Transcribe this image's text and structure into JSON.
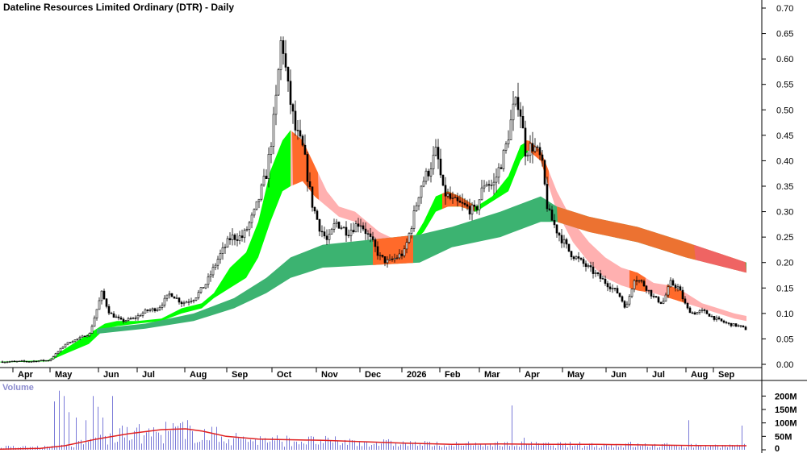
{
  "chart_data": [
    {
      "type": "candlestick",
      "title": "Dateline Resources Limited Ordinary (DTR) - Daily",
      "ylim": [
        0,
        0.7
      ],
      "y_ticks": [
        "0.70",
        "0.65",
        "0.60",
        "0.55",
        "0.50",
        "0.45",
        "0.40",
        "0.35",
        "0.30",
        "0.25",
        "0.20",
        "0.15",
        "0.10",
        "0.05",
        "0.00"
      ],
      "x_labels": [
        "Apr",
        "May",
        "Jun",
        "Jul",
        "Aug",
        "Sep",
        "Oct",
        "Nov",
        "Dec",
        "2026",
        "Feb",
        "Mar",
        "Apr",
        "May",
        "Jun",
        "Jul",
        "Aug",
        "Sep"
      ],
      "price_path": [
        [
          0,
          0.005
        ],
        [
          40,
          0.006
        ],
        [
          60,
          0.008
        ],
        [
          68,
          0.02
        ],
        [
          80,
          0.04
        ],
        [
          95,
          0.05
        ],
        [
          110,
          0.06
        ],
        [
          125,
          0.14
        ],
        [
          135,
          0.1
        ],
        [
          150,
          0.085
        ],
        [
          165,
          0.09
        ],
        [
          180,
          0.105
        ],
        [
          195,
          0.11
        ],
        [
          210,
          0.14
        ],
        [
          225,
          0.12
        ],
        [
          240,
          0.13
        ],
        [
          255,
          0.16
        ],
        [
          270,
          0.21
        ],
        [
          285,
          0.25
        ],
        [
          300,
          0.25
        ],
        [
          315,
          0.3
        ],
        [
          330,
          0.38
        ],
        [
          340,
          0.5
        ],
        [
          348,
          0.65
        ],
        [
          355,
          0.55
        ],
        [
          365,
          0.46
        ],
        [
          375,
          0.42
        ],
        [
          385,
          0.32
        ],
        [
          395,
          0.27
        ],
        [
          405,
          0.24
        ],
        [
          415,
          0.28
        ],
        [
          430,
          0.26
        ],
        [
          445,
          0.28
        ],
        [
          460,
          0.24
        ],
        [
          470,
          0.21
        ],
        [
          480,
          0.2
        ],
        [
          490,
          0.21
        ],
        [
          500,
          0.22
        ],
        [
          510,
          0.28
        ],
        [
          520,
          0.35
        ],
        [
          530,
          0.38
        ],
        [
          540,
          0.42
        ],
        [
          548,
          0.34
        ],
        [
          560,
          0.32
        ],
        [
          575,
          0.31
        ],
        [
          588,
          0.3
        ],
        [
          600,
          0.36
        ],
        [
          610,
          0.35
        ],
        [
          625,
          0.42
        ],
        [
          635,
          0.5
        ],
        [
          642,
          0.52
        ],
        [
          650,
          0.42
        ],
        [
          660,
          0.43
        ],
        [
          670,
          0.4
        ],
        [
          678,
          0.3
        ],
        [
          690,
          0.26
        ],
        [
          705,
          0.22
        ],
        [
          720,
          0.2
        ],
        [
          735,
          0.18
        ],
        [
          750,
          0.16
        ],
        [
          765,
          0.14
        ],
        [
          775,
          0.11
        ],
        [
          785,
          0.17
        ],
        [
          795,
          0.16
        ],
        [
          810,
          0.13
        ],
        [
          820,
          0.12
        ],
        [
          830,
          0.16
        ],
        [
          840,
          0.15
        ],
        [
          850,
          0.11
        ],
        [
          858,
          0.1
        ],
        [
          870,
          0.105
        ],
        [
          885,
          0.09
        ],
        [
          900,
          0.08
        ],
        [
          915,
          0.075
        ],
        [
          925,
          0.068
        ]
      ],
      "bands": [
        {
          "upper": [
            [
              0,
              0.005
            ],
            [
              60,
              0.008
            ],
            [
              80,
              0.03
            ],
            [
              110,
              0.06
            ],
            [
              130,
              0.08
            ],
            [
              145,
              0.085
            ],
            [
              170,
              0.085
            ],
            [
              200,
              0.09
            ],
            [
              225,
              0.11
            ],
            [
              250,
              0.12
            ],
            [
              265,
              0.14
            ],
            [
              285,
              0.19
            ],
            [
              305,
              0.22
            ],
            [
              320,
              0.28
            ],
            [
              335,
              0.38
            ],
            [
              350,
              0.44
            ],
            [
              360,
              0.46
            ]
          ],
          "lower": [
            [
              0,
              0.004
            ],
            [
              60,
              0.006
            ],
            [
              80,
              0.02
            ],
            [
              110,
              0.04
            ],
            [
              130,
              0.07
            ],
            [
              145,
              0.075
            ],
            [
              170,
              0.08
            ],
            [
              200,
              0.085
            ],
            [
              225,
              0.1
            ],
            [
              250,
              0.11
            ],
            [
              265,
              0.13
            ],
            [
              285,
              0.15
            ],
            [
              305,
              0.17
            ],
            [
              320,
              0.21
            ],
            [
              335,
              0.28
            ],
            [
              350,
              0.34
            ],
            [
              360,
              0.35
            ]
          ],
          "color": "#00ff00"
        },
        {
          "upper": [
            [
              360,
              0.46
            ],
            [
              375,
              0.44
            ],
            [
              390,
              0.39
            ],
            [
              405,
              0.34
            ],
            [
              420,
              0.31
            ],
            [
              440,
              0.3
            ],
            [
              455,
              0.28
            ],
            [
              470,
              0.26
            ],
            [
              490,
              0.245
            ],
            [
              505,
              0.24
            ],
            [
              510,
              0.24
            ]
          ],
          "lower": [
            [
              360,
              0.35
            ],
            [
              375,
              0.36
            ],
            [
              390,
              0.33
            ],
            [
              405,
              0.31
            ],
            [
              420,
              0.29
            ],
            [
              440,
              0.28
            ],
            [
              455,
              0.26
            ],
            [
              470,
              0.24
            ],
            [
              490,
              0.235
            ],
            [
              505,
              0.235
            ],
            [
              510,
              0.238
            ]
          ],
          "color": "#ffb0b0"
        },
        {
          "upper": [
            [
              510,
              0.24
            ],
            [
              525,
              0.28
            ],
            [
              540,
              0.33
            ],
            [
              555,
              0.34
            ],
            [
              570,
              0.33
            ],
            [
              590,
              0.31
            ],
            [
              610,
              0.33
            ],
            [
              630,
              0.37
            ],
            [
              645,
              0.43
            ],
            [
              655,
              0.44
            ]
          ],
          "lower": [
            [
              510,
              0.238
            ],
            [
              525,
              0.26
            ],
            [
              540,
              0.3
            ],
            [
              555,
              0.31
            ],
            [
              570,
              0.31
            ],
            [
              590,
              0.3
            ],
            [
              610,
              0.32
            ],
            [
              630,
              0.34
            ],
            [
              645,
              0.4
            ],
            [
              655,
              0.42
            ]
          ],
          "color": "#00ff00"
        },
        {
          "upper": [
            [
              655,
              0.44
            ],
            [
              670,
              0.42
            ],
            [
              690,
              0.34
            ],
            [
              710,
              0.28
            ],
            [
              730,
              0.24
            ],
            [
              750,
              0.21
            ],
            [
              770,
              0.19
            ],
            [
              790,
              0.18
            ],
            [
              810,
              0.16
            ],
            [
              830,
              0.155
            ],
            [
              850,
              0.14
            ],
            [
              870,
              0.12
            ],
            [
              890,
              0.11
            ],
            [
              910,
              0.1
            ],
            [
              925,
              0.095
            ]
          ],
          "lower": [
            [
              655,
              0.42
            ],
            [
              670,
              0.4
            ],
            [
              690,
              0.3
            ],
            [
              710,
              0.24
            ],
            [
              730,
              0.2
            ],
            [
              750,
              0.17
            ],
            [
              770,
              0.155
            ],
            [
              790,
              0.145
            ],
            [
              810,
              0.14
            ],
            [
              830,
              0.13
            ],
            [
              850,
              0.12
            ],
            [
              870,
              0.11
            ],
            [
              890,
              0.1
            ],
            [
              910,
              0.09
            ],
            [
              925,
              0.085
            ]
          ],
          "color": "#ffb0b0"
        },
        {
          "upper": [
            [
              120,
              0.07
            ],
            [
              180,
              0.08
            ],
            [
              240,
              0.1
            ],
            [
              290,
              0.13
            ],
            [
              330,
              0.17
            ],
            [
              360,
              0.21
            ],
            [
              400,
              0.235
            ],
            [
              460,
              0.245
            ],
            [
              520,
              0.255
            ],
            [
              560,
              0.27
            ],
            [
              620,
              0.3
            ],
            [
              670,
              0.33
            ],
            [
              690,
              0.31
            ],
            [
              730,
              0.29
            ],
            [
              790,
              0.27
            ],
            [
              850,
              0.24
            ],
            [
              925,
              0.2
            ]
          ],
          "lower": [
            [
              120,
              0.06
            ],
            [
              180,
              0.07
            ],
            [
              240,
              0.085
            ],
            [
              290,
              0.11
            ],
            [
              330,
              0.14
            ],
            [
              360,
              0.17
            ],
            [
              400,
              0.19
            ],
            [
              460,
              0.195
            ],
            [
              520,
              0.2
            ],
            [
              560,
              0.23
            ],
            [
              620,
              0.25
            ],
            [
              670,
              0.28
            ],
            [
              690,
              0.28
            ],
            [
              730,
              0.26
            ],
            [
              790,
              0.24
            ],
            [
              850,
              0.21
            ],
            [
              925,
              0.18
            ]
          ],
          "color": "#3cb371"
        }
      ]
    },
    {
      "type": "bar",
      "title": "Volume",
      "y_ticks": [
        "200M",
        "150M",
        "100M",
        "50M",
        "0"
      ],
      "ylim": [
        0,
        240
      ],
      "volume_spikes": [
        [
          68,
          180
        ],
        [
          73,
          220
        ],
        [
          78,
          200
        ],
        [
          85,
          140
        ],
        [
          95,
          120
        ],
        [
          105,
          110
        ],
        [
          115,
          200
        ],
        [
          122,
          160
        ],
        [
          128,
          120
        ],
        [
          140,
          200
        ],
        [
          150,
          90
        ],
        [
          165,
          70
        ],
        [
          180,
          65
        ],
        [
          200,
          55
        ],
        [
          230,
          40
        ],
        [
          260,
          35
        ],
        [
          340,
          35
        ],
        [
          350,
          30
        ],
        [
          400,
          25
        ],
        [
          510,
          25
        ],
        [
          545,
          15
        ],
        [
          633,
          165
        ],
        [
          650,
          45
        ],
        [
          780,
          30
        ],
        [
          853,
          110
        ],
        [
          920,
          90
        ]
      ],
      "ma_line": [
        [
          0,
          2
        ],
        [
          50,
          5
        ],
        [
          80,
          15
        ],
        [
          120,
          40
        ],
        [
          160,
          60
        ],
        [
          200,
          75
        ],
        [
          230,
          78
        ],
        [
          250,
          70
        ],
        [
          280,
          50
        ],
        [
          320,
          40
        ],
        [
          400,
          35
        ],
        [
          450,
          30
        ],
        [
          500,
          25
        ],
        [
          560,
          20
        ],
        [
          620,
          22
        ],
        [
          680,
          20
        ],
        [
          740,
          20
        ],
        [
          800,
          18
        ],
        [
          860,
          16
        ],
        [
          925,
          15
        ]
      ]
    }
  ]
}
